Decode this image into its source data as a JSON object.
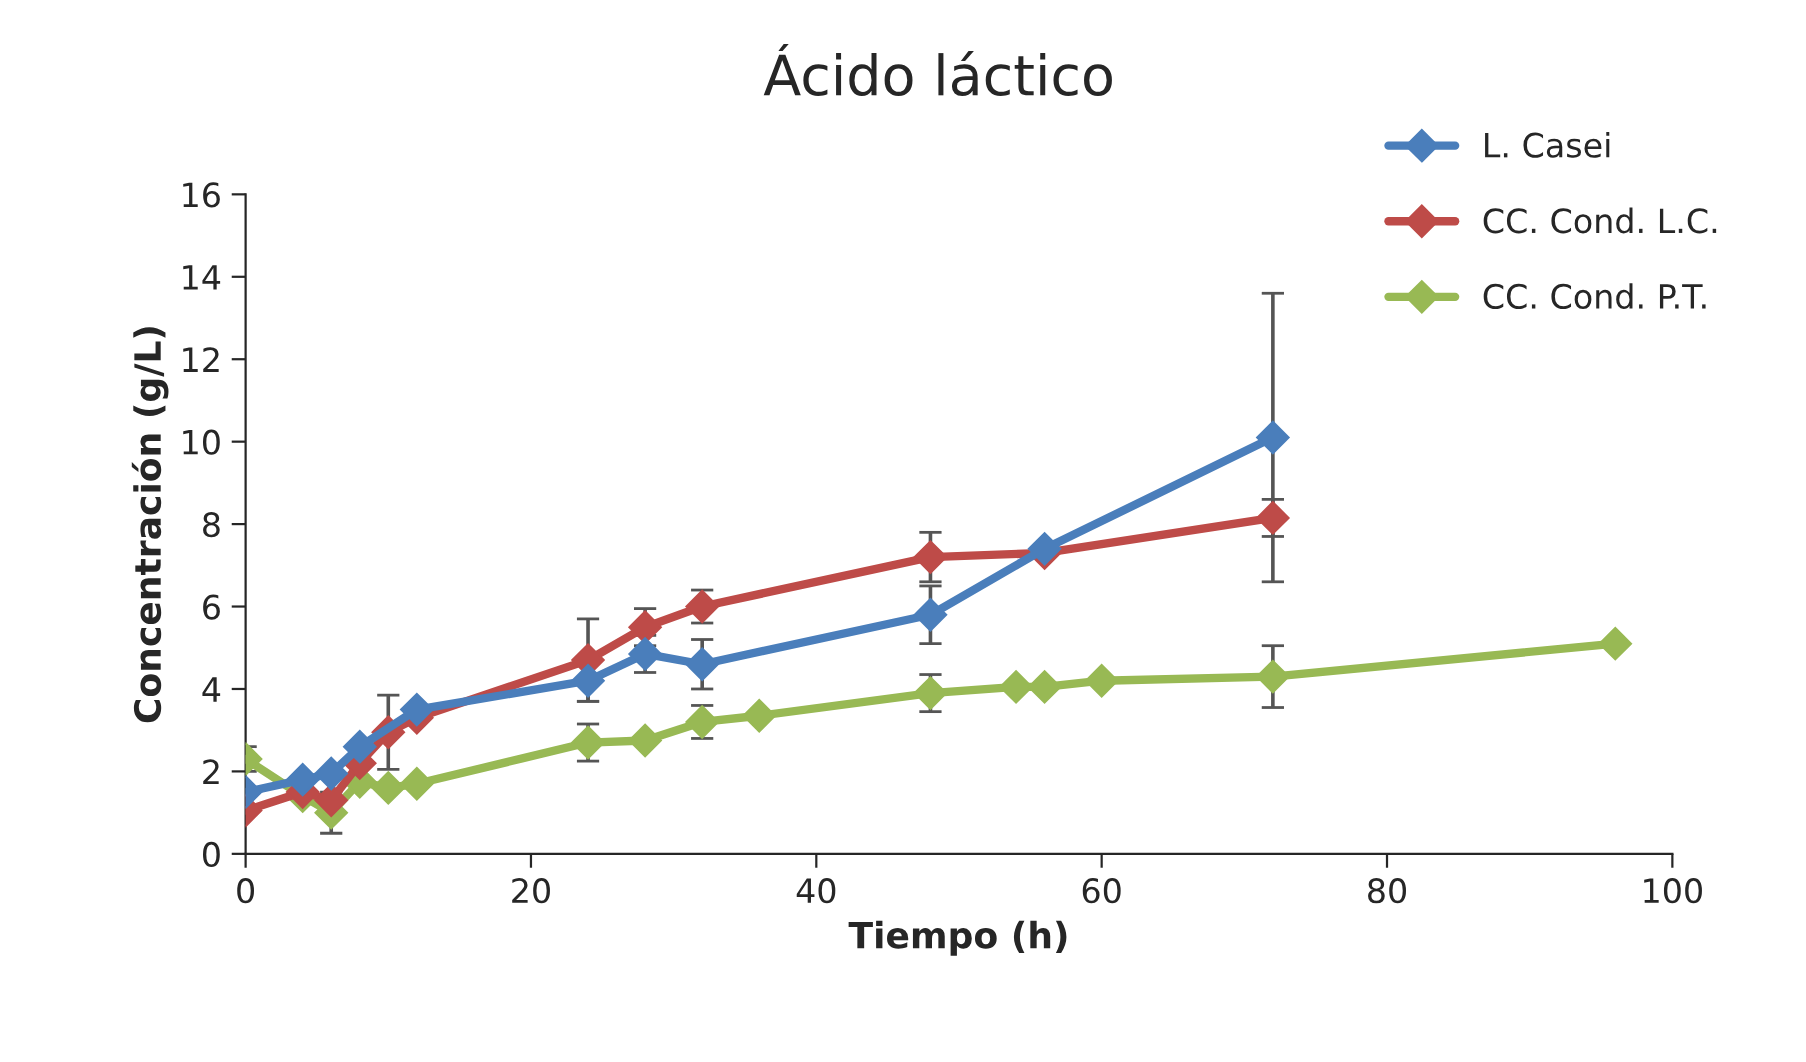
{
  "chart_data": {
    "type": "line",
    "title": "Ácido láctico",
    "xlabel": "Tiempo (h)",
    "ylabel": "Concentración (g/L)",
    "xlim": [
      0,
      100
    ],
    "xticks": [
      0,
      20,
      40,
      60,
      80,
      100
    ],
    "ylim": [
      0,
      16
    ],
    "yticks": [
      0,
      2,
      4,
      6,
      8,
      10,
      12,
      14,
      16
    ],
    "grid": false,
    "legend": "right",
    "marker": "diamond",
    "line_style": "solid",
    "series": [
      {
        "name": "L. Casei",
        "color": "#4a7ebb",
        "x": [
          0,
          4,
          6,
          8,
          12,
          24,
          28,
          32,
          48,
          56,
          72
        ],
        "values": [
          1.5,
          1.8,
          1.95,
          2.6,
          3.5,
          4.2,
          4.85,
          4.6,
          5.8,
          7.4,
          10.1
        ],
        "errors": [
          null,
          null,
          null,
          null,
          null,
          0.5,
          0.45,
          0.6,
          0.7,
          null,
          3.5
        ]
      },
      {
        "name": "CC. Cond. L.C.",
        "color": "#be4b48",
        "x": [
          0,
          4,
          6,
          8,
          10,
          12,
          24,
          28,
          32,
          48,
          56,
          72
        ],
        "values": [
          1.05,
          1.5,
          1.3,
          2.2,
          2.95,
          3.3,
          4.7,
          5.5,
          6.0,
          7.2,
          7.3,
          8.15
        ],
        "errors": [
          null,
          null,
          null,
          null,
          0.9,
          null,
          1.0,
          0.45,
          0.4,
          0.6,
          null,
          0.45
        ]
      },
      {
        "name": "CC. Cond. P.T.",
        "color": "#98b954",
        "x": [
          0,
          4,
          6,
          8,
          10,
          12,
          24,
          28,
          32,
          36,
          48,
          54,
          56,
          60,
          72,
          96
        ],
        "values": [
          2.3,
          1.4,
          1.0,
          1.75,
          1.6,
          1.7,
          2.7,
          2.75,
          3.2,
          3.35,
          3.9,
          4.05,
          4.05,
          4.2,
          4.3,
          5.1
        ],
        "errors": [
          0.3,
          null,
          0.5,
          null,
          null,
          null,
          0.45,
          null,
          0.4,
          null,
          0.45,
          null,
          null,
          null,
          0.75,
          null
        ]
      }
    ]
  }
}
